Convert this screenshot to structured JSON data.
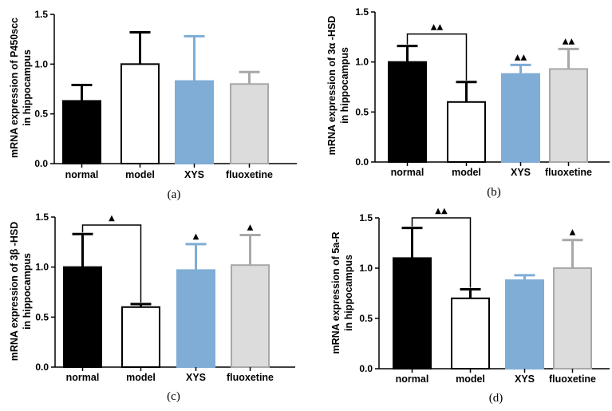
{
  "chart_data": [
    {
      "type": "bar",
      "panel": "(a)",
      "categories": [
        "normal",
        "model",
        "XYS",
        "fluoxetine"
      ],
      "values": [
        0.63,
        1.0,
        0.83,
        0.8
      ],
      "errors": [
        0.16,
        0.32,
        0.45,
        0.12
      ],
      "ylabel_line1": "mRNA expression of P450scc",
      "ylabel_line2": "in hippocampus",
      "ylim": [
        0,
        1.5
      ],
      "yticks": [
        "0.0",
        "0.5",
        "1.0",
        "1.5"
      ],
      "significance": [
        "",
        "",
        "",
        ""
      ],
      "bracket": null
    },
    {
      "type": "bar",
      "panel": "(b)",
      "categories": [
        "normal",
        "model",
        "XYS",
        "fluoxetine"
      ],
      "values": [
        1.0,
        0.6,
        0.88,
        0.93
      ],
      "errors": [
        0.16,
        0.2,
        0.09,
        0.2
      ],
      "ylabel_line1": "mRNA expression of 3α -HSD",
      "ylabel_line2": "in hippocampus",
      "ylim": [
        0,
        1.5
      ],
      "yticks": [
        "0.0",
        "0.5",
        "1.0",
        "1.5"
      ],
      "significance": [
        "",
        "",
        "▲▲",
        "▲▲"
      ],
      "bracket": {
        "y": 1.28,
        "label": "▲▲"
      }
    },
    {
      "type": "bar",
      "panel": "(c)",
      "categories": [
        "normal",
        "model",
        "XYS",
        "fluoxetine"
      ],
      "values": [
        1.0,
        0.6,
        0.97,
        1.02
      ],
      "errors": [
        0.33,
        0.03,
        0.26,
        0.3
      ],
      "ylabel_line1": "mRNA expression of 3β -HSD",
      "ylabel_line2": "in hippocampus",
      "ylim": [
        0,
        1.5
      ],
      "yticks": [
        "0.0",
        "0.5",
        "1.0",
        "1.5"
      ],
      "significance": [
        "",
        "",
        "▲",
        "▲"
      ],
      "bracket": {
        "y": 1.42,
        "label": "▲"
      }
    },
    {
      "type": "bar",
      "panel": "(d)",
      "categories": [
        "normal",
        "model",
        "XYS",
        "fluoxetine"
      ],
      "values": [
        1.1,
        0.7,
        0.88,
        1.0
      ],
      "errors": [
        0.3,
        0.09,
        0.05,
        0.28
      ],
      "ylabel_line1": "mRNA expression of 5a-R",
      "ylabel_line2": "in hippocampus",
      "ylim": [
        0,
        1.5
      ],
      "yticks": [
        "0.0",
        "0.5",
        "1.0",
        "1.5"
      ],
      "significance": [
        "",
        "",
        "",
        "▲"
      ],
      "bracket": {
        "y": 1.5,
        "label": "▲▲"
      }
    }
  ],
  "style": {
    "bar_fills": [
      "#000000",
      "#ffffff",
      "#7fadd6",
      "#dcdcdc"
    ],
    "bar_strokes": [
      "#000000",
      "#000000",
      "#7fadd6",
      "#a8a8a8"
    ]
  }
}
